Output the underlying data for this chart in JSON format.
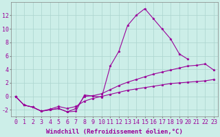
{
  "xlabel": "Windchill (Refroidissement éolien,°C)",
  "background_color": "#cceee8",
  "grid_color": "#aad4ce",
  "line_color": "#990099",
  "ylim": [
    -3,
    14
  ],
  "xlim": [
    -0.5,
    23.5
  ],
  "yticks": [
    -2,
    0,
    2,
    4,
    6,
    8,
    10,
    12
  ],
  "xticks": [
    0,
    1,
    2,
    3,
    4,
    5,
    6,
    7,
    8,
    9,
    10,
    11,
    12,
    13,
    14,
    15,
    16,
    17,
    18,
    19,
    20,
    21,
    22,
    23
  ],
  "xtick_labels": [
    "0",
    "1",
    "2",
    "3",
    "4",
    "5",
    "6",
    "7",
    "8",
    "9",
    "10",
    "11",
    "12",
    "13",
    "14",
    "15",
    "16",
    "17",
    "18",
    "19",
    "20",
    "21",
    "22",
    "23"
  ],
  "font_size": 6.5,
  "tick_font_size": 6,
  "line_peak": {
    "x": [
      0,
      1,
      2,
      3,
      4,
      5,
      6,
      7,
      8,
      9,
      10,
      11,
      12,
      13,
      14,
      15,
      16,
      17,
      18,
      19,
      20
    ],
    "y": [
      0.0,
      -1.3,
      -1.6,
      -2.2,
      -2.0,
      -1.8,
      -2.3,
      -2.2,
      0.2,
      0.05,
      -0.1,
      4.5,
      6.7,
      10.5,
      12.0,
      13.0,
      11.5,
      10.0,
      8.5,
      6.3,
      5.5
    ]
  },
  "line_max": {
    "x": [
      0,
      1,
      2,
      3,
      4,
      5,
      6,
      7,
      8,
      9,
      10,
      11,
      12,
      13,
      14,
      15,
      16,
      17,
      18,
      19,
      20,
      21,
      22,
      23
    ],
    "y": [
      0.0,
      -1.3,
      -1.6,
      -2.2,
      -2.0,
      -1.8,
      -2.3,
      -1.8,
      0.0,
      0.1,
      0.4,
      1.0,
      1.6,
      2.1,
      2.5,
      2.9,
      3.3,
      3.6,
      3.9,
      4.2,
      4.5,
      4.6,
      4.8,
      3.9
    ]
  },
  "line_min": {
    "x": [
      0,
      1,
      2,
      3,
      4,
      5,
      6,
      7,
      8,
      9,
      10,
      11,
      12,
      13,
      14,
      15,
      16,
      17,
      18,
      19,
      20,
      21,
      22,
      23
    ],
    "y": [
      0.0,
      -1.3,
      -1.6,
      -2.2,
      -1.9,
      -1.5,
      -1.8,
      -1.5,
      -0.7,
      -0.3,
      0.0,
      0.3,
      0.6,
      0.9,
      1.1,
      1.3,
      1.5,
      1.7,
      1.9,
      2.0,
      2.1,
      2.2,
      2.3,
      2.5
    ]
  }
}
